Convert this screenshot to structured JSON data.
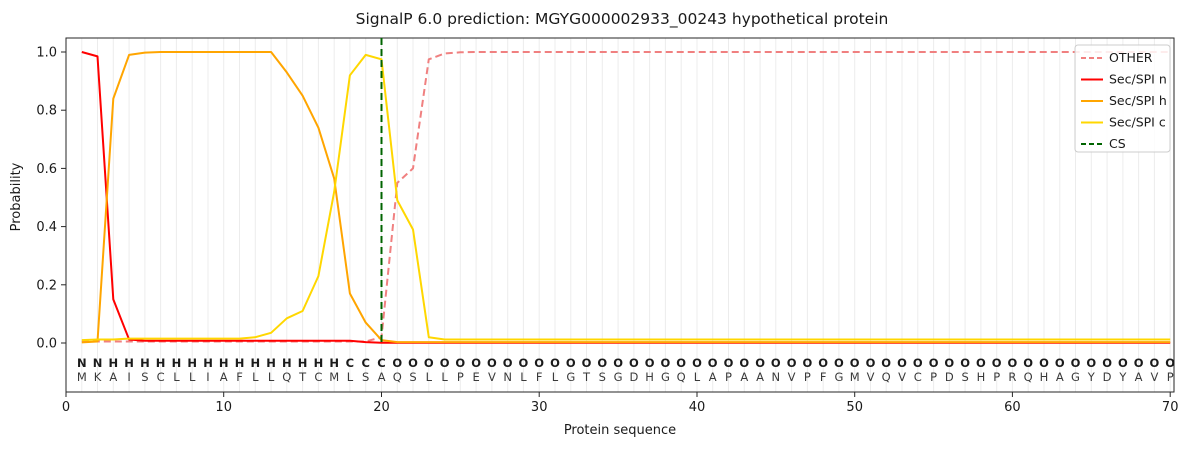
{
  "title": "SignalP 6.0 prediction: MGYG000002933_00243 hypothetical protein",
  "legend": {
    "items": [
      {
        "label": "OTHER",
        "color": "#f08080",
        "dashed": true
      },
      {
        "label": "Sec/SPI n",
        "color": "#ff0000",
        "dashed": false
      },
      {
        "label": "Sec/SPI h",
        "color": "#ffa500",
        "dashed": false
      },
      {
        "label": "Sec/SPI c",
        "color": "#ffd700",
        "dashed": false
      },
      {
        "label": "CS",
        "color": "#006400",
        "dashed": true
      }
    ]
  },
  "label_colors": {
    "N": "#ff0000",
    "H": "#ffa500",
    "C": "#ffd700",
    "O": "#8c8c8c"
  },
  "chart_data": {
    "type": "line",
    "title": "SignalP 6.0 prediction: MGYG000002933_00243 hypothetical protein",
    "xlabel": "Protein sequence",
    "ylabel": "Probability",
    "xlim": [
      0,
      70
    ],
    "ylim": [
      0.0,
      1.05
    ],
    "x_ticks": [
      0,
      10,
      20,
      30,
      40,
      50,
      60,
      70
    ],
    "y_ticks": [
      "0.0",
      "0.2",
      "0.4",
      "0.6",
      "0.8",
      "1.0"
    ],
    "grid": "vertical light gridline at every residue position 1-70",
    "legend_position": "upper right",
    "sequence": "MKAISCLLIAFLLQTCMLSAQSLLPEVNLFLGTSGDHGQLAPAANVPFGMVQVCPDSHPRQHAGYDYAVP",
    "region_labels": "NNHHHHHHHHHHHHHHHCCCOOOOOOOOOOOOOOOOOOOOOOOOOOOOOOOOOOOOOOOOOOOOOOOOOO",
    "x": [
      1,
      2,
      3,
      4,
      5,
      6,
      7,
      8,
      9,
      10,
      11,
      12,
      13,
      14,
      15,
      16,
      17,
      18,
      19,
      20,
      21,
      22,
      23,
      24,
      25,
      26,
      27,
      28,
      29,
      30,
      31,
      32,
      33,
      34,
      35,
      36,
      37,
      38,
      39,
      40,
      41,
      42,
      43,
      44,
      45,
      46,
      47,
      48,
      49,
      50,
      51,
      52,
      53,
      54,
      55,
      56,
      57,
      58,
      59,
      60,
      61,
      62,
      63,
      64,
      65,
      66,
      67,
      68,
      69,
      70
    ],
    "series": [
      {
        "name": "OTHER",
        "color": "#f08080",
        "dashed": true,
        "values": [
          0.005,
          0.005,
          0.005,
          0.005,
          0.005,
          0.005,
          0.005,
          0.005,
          0.005,
          0.005,
          0.005,
          0.005,
          0.005,
          0.005,
          0.005,
          0.005,
          0.005,
          0.005,
          0.005,
          0.02,
          0.55,
          0.6,
          0.975,
          0.995,
          0.999,
          1.0,
          1.0,
          1.0,
          1.0,
          1.0,
          1.0,
          1.0,
          1.0,
          1.0,
          1.0,
          1.0,
          1.0,
          1.0,
          1.0,
          1.0,
          1.0,
          1.0,
          1.0,
          1.0,
          1.0,
          1.0,
          1.0,
          1.0,
          1.0,
          1.0,
          1.0,
          1.0,
          1.0,
          1.0,
          1.0,
          1.0,
          1.0,
          1.0,
          1.0,
          1.0,
          1.0,
          1.0,
          1.0,
          1.0,
          1.0,
          1.0,
          1.0,
          1.0,
          1.0,
          1.0
        ]
      },
      {
        "name": "Sec/SPI n",
        "color": "#ff0000",
        "dashed": false,
        "values": [
          1.0,
          0.985,
          0.15,
          0.012,
          0.008,
          0.008,
          0.008,
          0.008,
          0.008,
          0.008,
          0.008,
          0.008,
          0.008,
          0.008,
          0.008,
          0.008,
          0.008,
          0.008,
          0.003,
          0.001,
          0.001,
          0.001,
          0.001,
          0.001,
          0.001,
          0.001,
          0.001,
          0.001,
          0.001,
          0.001,
          0.001,
          0.001,
          0.001,
          0.001,
          0.001,
          0.001,
          0.001,
          0.001,
          0.001,
          0.001,
          0.001,
          0.001,
          0.001,
          0.001,
          0.001,
          0.001,
          0.001,
          0.001,
          0.001,
          0.001,
          0.001,
          0.001,
          0.001,
          0.001,
          0.001,
          0.001,
          0.001,
          0.001,
          0.001,
          0.001,
          0.001,
          0.001,
          0.001,
          0.001,
          0.001,
          0.001,
          0.001,
          0.001,
          0.001,
          0.001
        ]
      },
      {
        "name": "Sec/SPI h",
        "color": "#ffa500",
        "dashed": false,
        "values": [
          0.002,
          0.005,
          0.84,
          0.99,
          0.998,
          1.0,
          1.0,
          1.0,
          1.0,
          1.0,
          1.0,
          1.0,
          1.0,
          0.93,
          0.85,
          0.74,
          0.565,
          0.17,
          0.07,
          0.01,
          0.003,
          0.003,
          0.003,
          0.003,
          0.003,
          0.003,
          0.003,
          0.003,
          0.003,
          0.003,
          0.003,
          0.003,
          0.003,
          0.003,
          0.003,
          0.003,
          0.003,
          0.003,
          0.003,
          0.003,
          0.003,
          0.003,
          0.003,
          0.003,
          0.003,
          0.003,
          0.003,
          0.003,
          0.003,
          0.003,
          0.003,
          0.003,
          0.003,
          0.003,
          0.003,
          0.003,
          0.003,
          0.003,
          0.003,
          0.003,
          0.003,
          0.003,
          0.003,
          0.003,
          0.003,
          0.003,
          0.003,
          0.003,
          0.003,
          0.003
        ]
      },
      {
        "name": "Sec/SPI c",
        "color": "#ffd700",
        "dashed": false,
        "values": [
          0.01,
          0.012,
          0.012,
          0.015,
          0.015,
          0.015,
          0.015,
          0.015,
          0.015,
          0.015,
          0.015,
          0.02,
          0.035,
          0.085,
          0.11,
          0.23,
          0.52,
          0.92,
          0.99,
          0.975,
          0.49,
          0.39,
          0.02,
          0.012,
          0.012,
          0.012,
          0.012,
          0.012,
          0.012,
          0.012,
          0.012,
          0.012,
          0.012,
          0.012,
          0.012,
          0.012,
          0.012,
          0.012,
          0.012,
          0.012,
          0.012,
          0.012,
          0.012,
          0.012,
          0.012,
          0.012,
          0.012,
          0.012,
          0.012,
          0.012,
          0.012,
          0.012,
          0.012,
          0.012,
          0.012,
          0.012,
          0.012,
          0.012,
          0.012,
          0.012,
          0.012,
          0.012,
          0.012,
          0.012,
          0.012,
          0.012,
          0.012,
          0.012,
          0.012,
          0.012
        ]
      }
    ],
    "cs_line": {
      "name": "CS",
      "x": 20,
      "color": "#006400",
      "dashed": true
    }
  }
}
